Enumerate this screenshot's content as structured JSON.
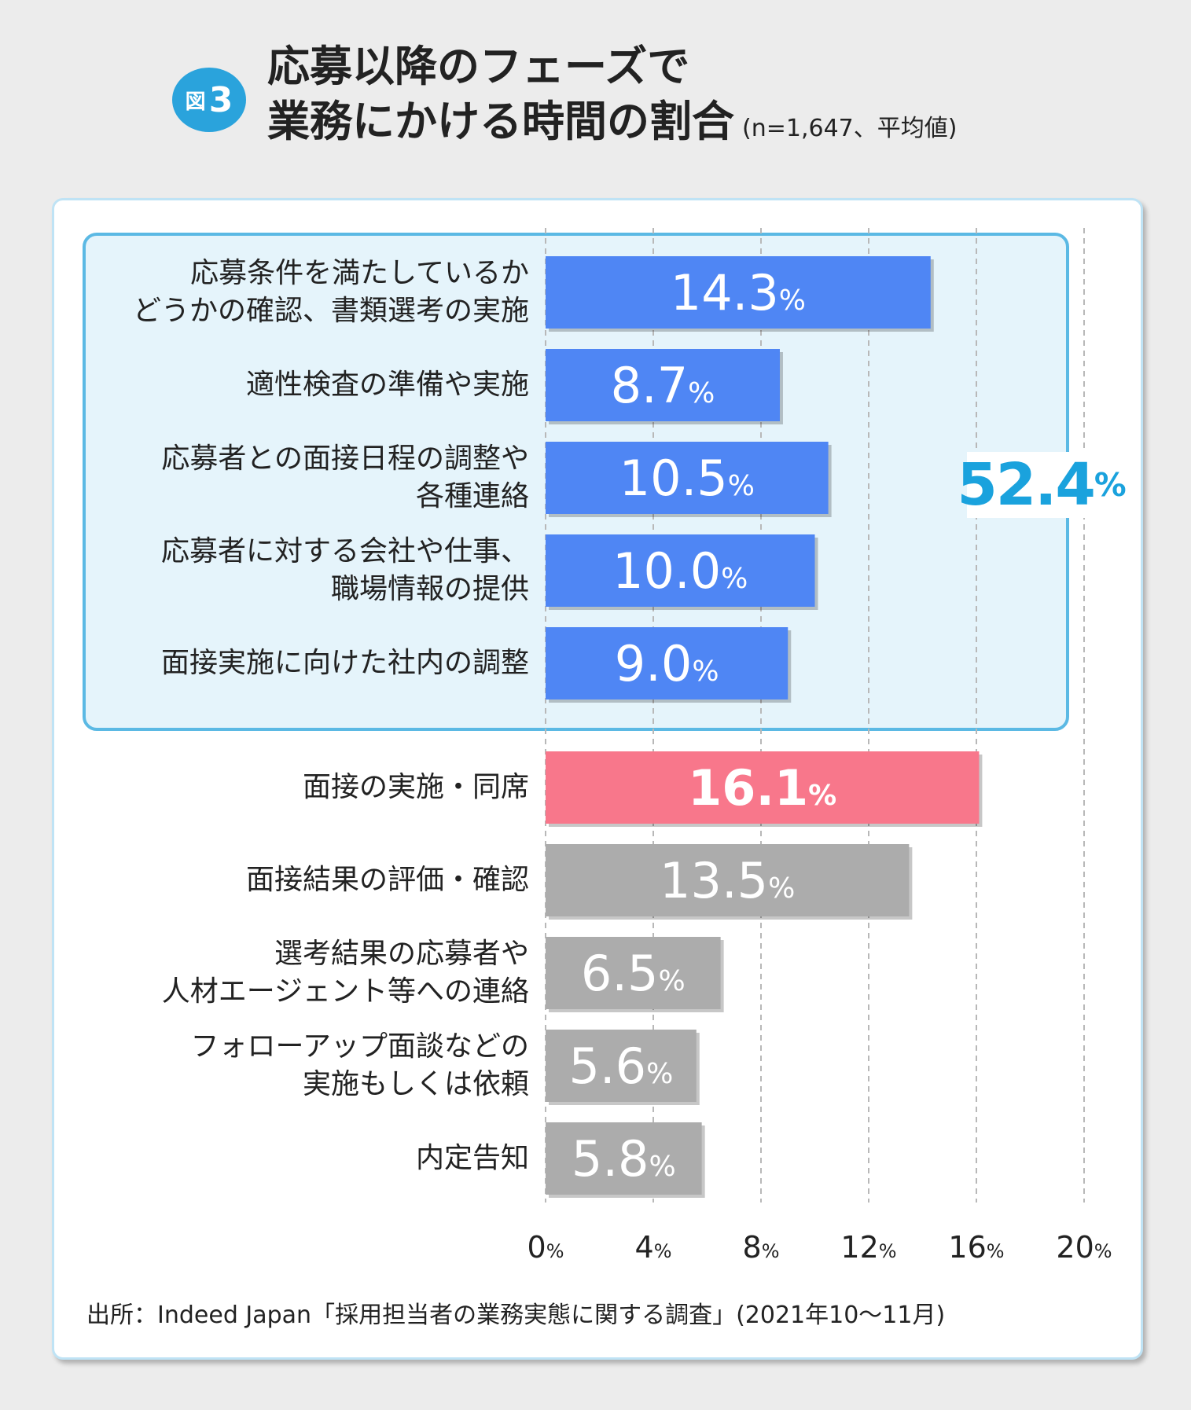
{
  "header": {
    "badge_label": "図",
    "badge_number": "3",
    "title_line1": "応募以降のフェーズで",
    "title_line2": "業務にかける時間の割合",
    "subtitle": "(n=1,647、平均値)"
  },
  "group_total": {
    "value": "52.4",
    "unit": "%"
  },
  "source": "出所：Indeed Japan「採用担当者の業務実態に関する調査」(2021年10〜11月)",
  "colors": {
    "group_bar": "#4f86f4",
    "highlight_bar": "#f8778b",
    "other_bar": "#acacac",
    "accent": "#1aa2dd"
  },
  "chart_data": {
    "type": "bar",
    "orientation": "horizontal",
    "unit": "%",
    "xlim": [
      0,
      20
    ],
    "x_ticks": [
      "0%",
      "4%",
      "8%",
      "12%",
      "16%",
      "20%"
    ],
    "grid": true,
    "categories": [
      "応募条件を満たしているか\nどうかの確認、書類選考の実施",
      "適性検査の準備や実施",
      "応募者との面接日程の調整や\n各種連絡",
      "応募者に対する会社や仕事、\n職場情報の提供",
      "面接実施に向けた社内の調整",
      "面接の実施・同席",
      "面接結果の評価・確認",
      "選考結果の応募者や\n人材エージェント等への連絡",
      "フォローアップ面談などの\n実施もしくは依頼",
      "内定告知"
    ],
    "values": [
      14.3,
      8.7,
      10.5,
      10.0,
      9.0,
      16.1,
      13.5,
      6.5,
      5.6,
      5.8
    ],
    "value_labels": [
      "14.3",
      "8.7",
      "10.5",
      "10.0",
      "9.0",
      "16.1",
      "13.5",
      "6.5",
      "5.6",
      "5.8"
    ],
    "bar_colors": [
      "group_bar",
      "group_bar",
      "group_bar",
      "group_bar",
      "group_bar",
      "highlight_bar",
      "other_bar",
      "other_bar",
      "other_bar",
      "other_bar"
    ]
  }
}
